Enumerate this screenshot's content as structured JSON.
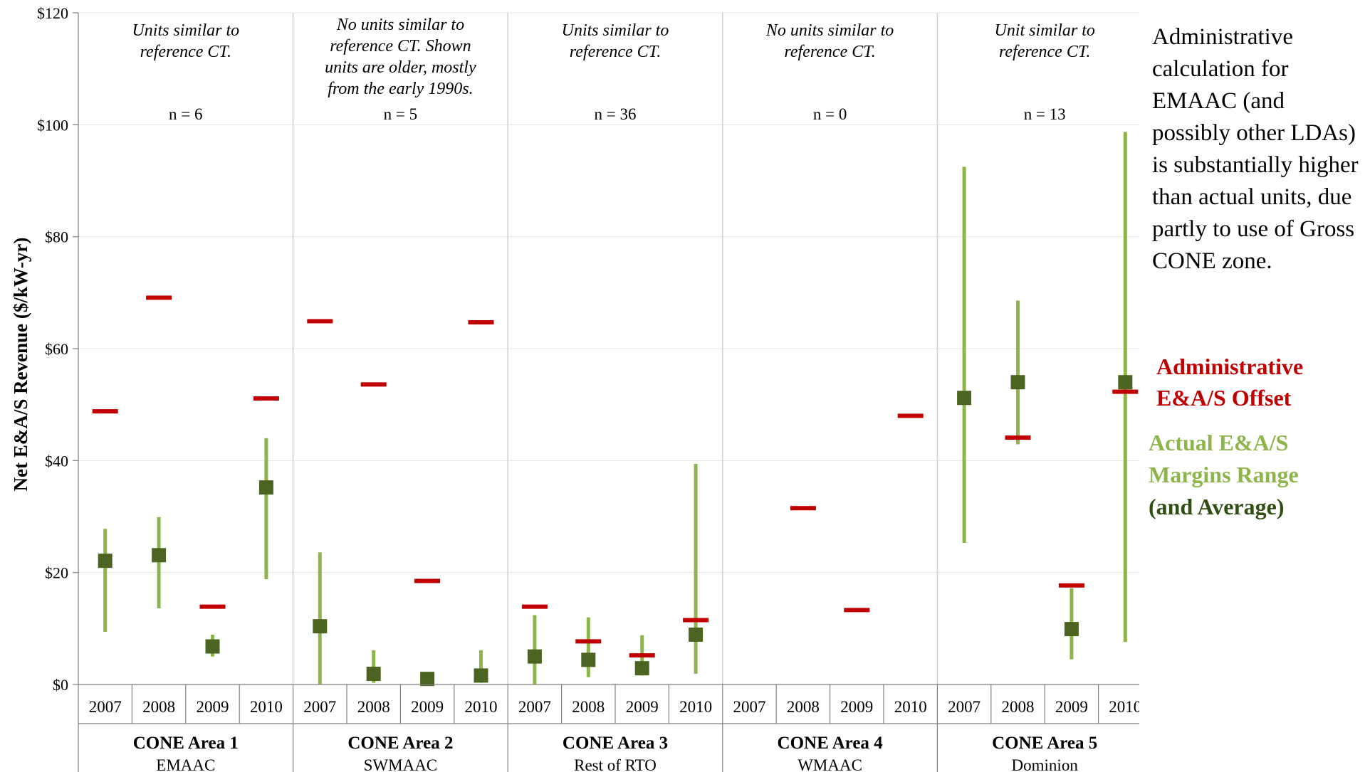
{
  "chart_data": {
    "type": "range-plot",
    "title": "",
    "ylabel": "Net E&A/S Revenue ($/kW-yr)",
    "ylim": [
      0,
      120
    ],
    "yticks": [
      0,
      20,
      40,
      60,
      80,
      100,
      120
    ],
    "ytick_labels": [
      "$0",
      "$20",
      "$40",
      "$60",
      "$80",
      "$100",
      "$120"
    ],
    "grid": true,
    "categories": [
      "2007",
      "2008",
      "2009",
      "2010"
    ],
    "groups": [
      {
        "name": "CONE Area 1",
        "sub": "EMAAC",
        "note": [
          "Units similar to",
          "reference CT."
        ],
        "n": "n = 6",
        "admin": [
          48.8,
          69.1,
          13.9,
          51.1
        ],
        "min": [
          9.4,
          13.6,
          5.0,
          18.8
        ],
        "max": [
          27.8,
          29.9,
          8.9,
          44.0
        ],
        "avg": [
          22.1,
          23.1,
          6.8,
          35.2
        ]
      },
      {
        "name": "CONE Area 2",
        "sub": "SWMAAC",
        "note": [
          "No units similar to",
          "reference CT. Shown",
          "units are older, mostly",
          "from the early 1990s."
        ],
        "n": "n = 5",
        "admin": [
          64.9,
          53.6,
          18.5,
          64.7
        ],
        "min": [
          0,
          0.3,
          0,
          0.3
        ],
        "max": [
          23.6,
          6.1,
          1.2,
          6.1
        ],
        "avg": [
          10.4,
          1.9,
          1.0,
          1.6
        ]
      },
      {
        "name": "CONE Area 3",
        "sub": "Rest of RTO",
        "note": [
          "Units similar to",
          "reference CT."
        ],
        "n": "n = 36",
        "admin": [
          13.9,
          7.7,
          5.2,
          11.5
        ],
        "min": [
          0,
          1.3,
          1.6,
          1.9
        ],
        "max": [
          12.4,
          12.0,
          8.8,
          39.4
        ],
        "avg": [
          5.0,
          4.4,
          2.9,
          8.9
        ]
      },
      {
        "name": "CONE Area 4",
        "sub": "WMAAC",
        "note": [
          "No units similar to",
          "reference CT."
        ],
        "n": "n = 0",
        "admin": [
          null,
          31.5,
          13.3,
          48.0
        ],
        "min": [
          null,
          null,
          null,
          null
        ],
        "max": [
          null,
          null,
          null,
          null
        ],
        "avg": [
          null,
          null,
          null,
          null
        ]
      },
      {
        "name": "CONE Area 5",
        "sub": "Dominion",
        "note": [
          "Unit similar to",
          "reference CT."
        ],
        "n": "n = 13",
        "admin": [
          null,
          44.1,
          17.7,
          52.3
        ],
        "min": [
          25.3,
          42.9,
          4.5,
          7.6
        ],
        "max": [
          92.5,
          68.6,
          17.2,
          98.7
        ],
        "avg": [
          51.2,
          54.0,
          9.9,
          54.0
        ]
      }
    ],
    "colors": {
      "admin": "#c00000",
      "range": "#8db54b",
      "avg": "#4b6421"
    }
  },
  "side_note": "Administrative calculation for EMAAC (and possibly other LDAs) is substantially higher than actual units, due partly to use of Gross CONE zone.",
  "legend": {
    "admin_line1": "Administrative",
    "admin_line2": "E&A/S Offset",
    "actual_line1": "Actual E&A/S",
    "actual_line2": "Margins Range",
    "average": "(and Average)"
  }
}
